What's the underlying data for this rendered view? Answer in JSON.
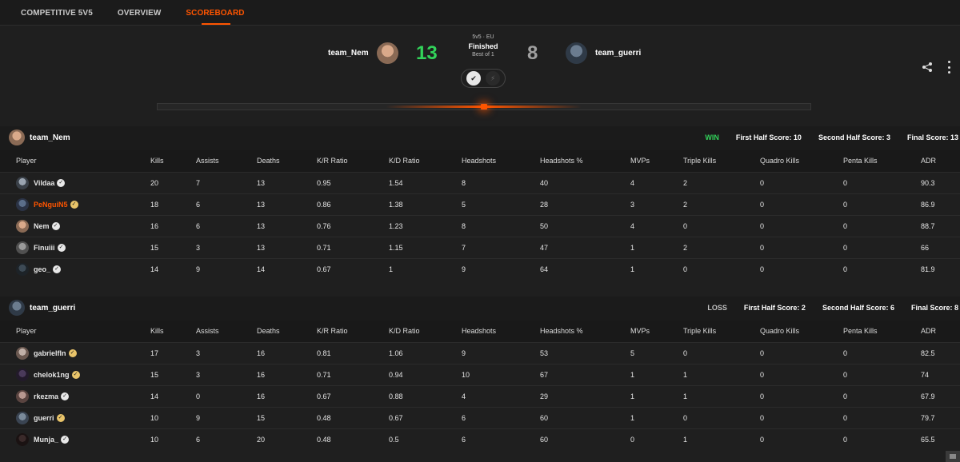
{
  "nav": {
    "tabs": [
      {
        "label": "COMPETITIVE 5V5",
        "active": false
      },
      {
        "label": "OVERVIEW",
        "active": false
      },
      {
        "label": "SCOREBOARD",
        "active": true
      }
    ]
  },
  "match": {
    "team1": {
      "name": "team_Nem",
      "score": "13"
    },
    "team2": {
      "name": "team_guerri",
      "score": "8"
    },
    "mode": "5v5 · EU",
    "status": "Finished",
    "best_of": "Best of 1",
    "badge_left_icon": "verified-icon",
    "badge_right_icon": "lightning-icon"
  },
  "colors": {
    "accent": "#ff5500",
    "win": "#32d35a",
    "loss_score": "#a0a0a0"
  },
  "table_headers": [
    "Player",
    "Kills",
    "Assists",
    "Deaths",
    "K/R Ratio",
    "K/D Ratio",
    "Headshots",
    "Headshots %",
    "MVPs",
    "Triple Kills",
    "Quadro Kills",
    "Penta Kills",
    "ADR"
  ],
  "teams": [
    {
      "name": "team_Nem",
      "result": "WIN",
      "first_half": "First Half Score: 10",
      "second_half": "Second Half Score: 3",
      "final": "Final Score: 13",
      "players": [
        {
          "name": "Vildaa",
          "stats": [
            "20",
            "7",
            "13",
            "0.95",
            "1.54",
            "8",
            "40",
            "4",
            "2",
            "0",
            "0",
            "90.3"
          ]
        },
        {
          "name": "PeNguiN5",
          "stats": [
            "18",
            "6",
            "13",
            "0.86",
            "1.38",
            "5",
            "28",
            "3",
            "2",
            "0",
            "0",
            "86.9"
          ]
        },
        {
          "name": "Nem",
          "stats": [
            "16",
            "6",
            "13",
            "0.76",
            "1.23",
            "8",
            "50",
            "4",
            "0",
            "0",
            "0",
            "88.7"
          ]
        },
        {
          "name": "Finuiii",
          "stats": [
            "15",
            "3",
            "13",
            "0.71",
            "1.15",
            "7",
            "47",
            "1",
            "2",
            "0",
            "0",
            "66"
          ]
        },
        {
          "name": "geo_",
          "stats": [
            "14",
            "9",
            "14",
            "0.67",
            "1",
            "9",
            "64",
            "1",
            "0",
            "0",
            "0",
            "81.9"
          ]
        }
      ]
    },
    {
      "name": "team_guerri",
      "result": "LOSS",
      "first_half": "First Half Score: 2",
      "second_half": "Second Half Score: 6",
      "final": "Final Score: 8",
      "players": [
        {
          "name": "gabrielfln",
          "stats": [
            "17",
            "3",
            "16",
            "0.81",
            "1.06",
            "9",
            "53",
            "5",
            "0",
            "0",
            "0",
            "82.5"
          ]
        },
        {
          "name": "chelok1ng",
          "stats": [
            "15",
            "3",
            "16",
            "0.71",
            "0.94",
            "10",
            "67",
            "1",
            "1",
            "0",
            "0",
            "74"
          ]
        },
        {
          "name": "rkezma",
          "stats": [
            "14",
            "0",
            "16",
            "0.67",
            "0.88",
            "4",
            "29",
            "1",
            "1",
            "0",
            "0",
            "67.9"
          ]
        },
        {
          "name": "guerri",
          "stats": [
            "10",
            "9",
            "15",
            "0.48",
            "0.67",
            "6",
            "60",
            "1",
            "0",
            "0",
            "0",
            "79.7"
          ]
        },
        {
          "name": "Munja_",
          "stats": [
            "10",
            "6",
            "20",
            "0.48",
            "0.5",
            "6",
            "60",
            "0",
            "1",
            "0",
            "0",
            "65.5"
          ]
        }
      ]
    }
  ]
}
